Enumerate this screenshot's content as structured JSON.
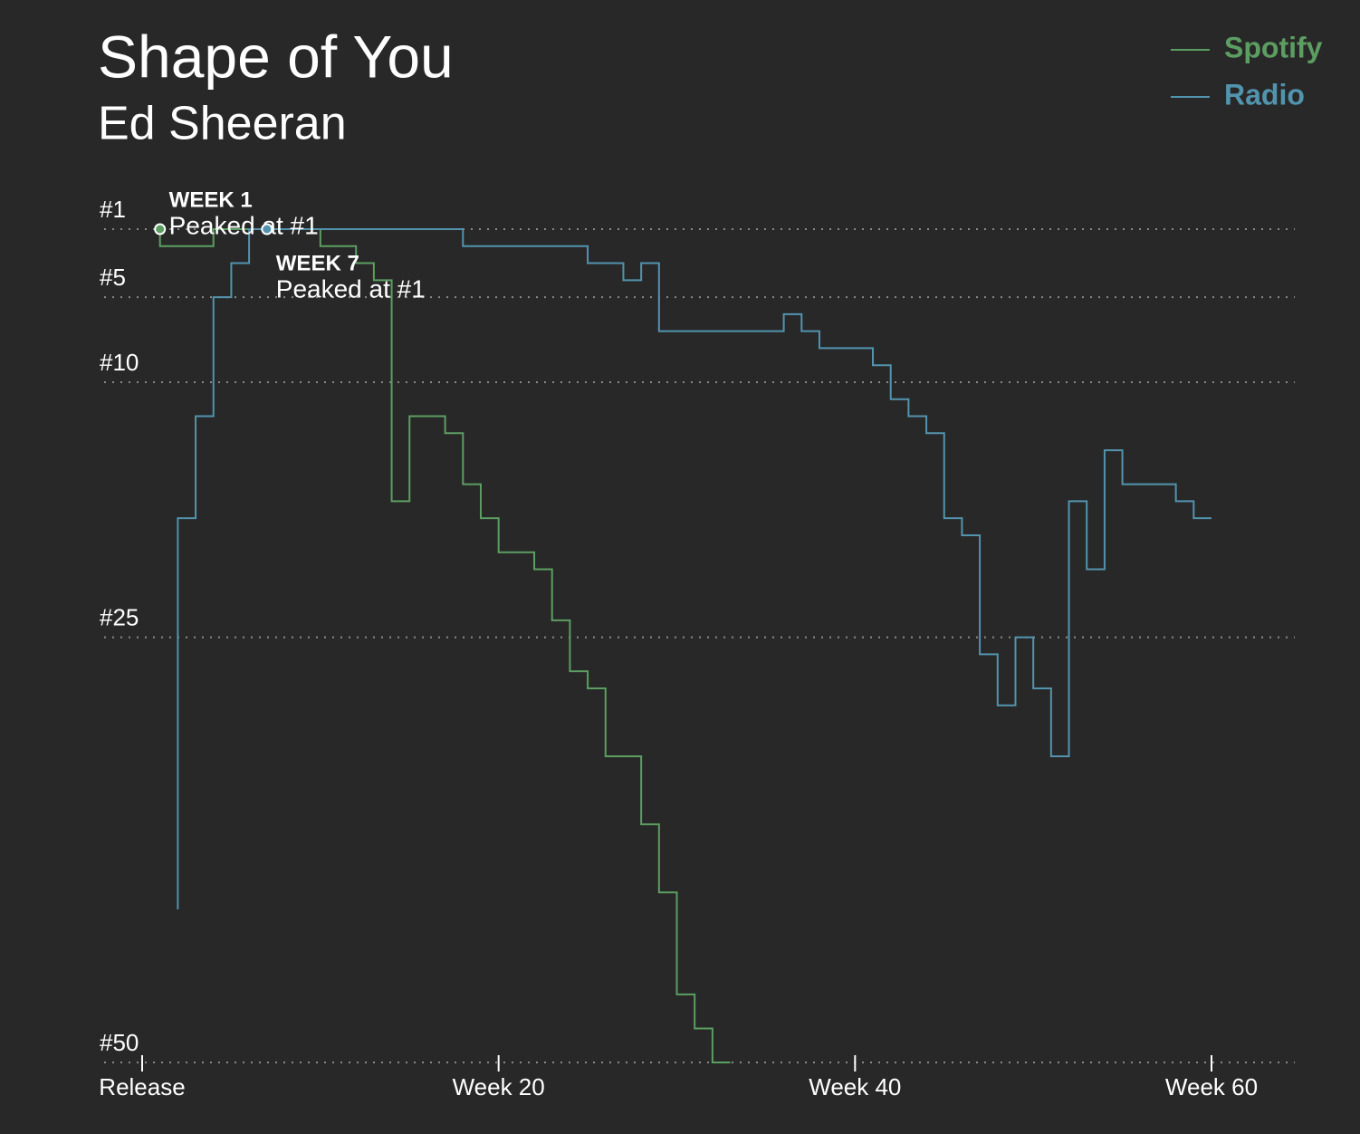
{
  "chart_data": {
    "type": "line",
    "title": "Shape of You",
    "subtitle": "Ed Sheeran",
    "step": true,
    "x": [
      1,
      2,
      3,
      4,
      5,
      6,
      7,
      8,
      9,
      10,
      11,
      12,
      13,
      14,
      15,
      16,
      17,
      18,
      19,
      20,
      21,
      22,
      23,
      24,
      25,
      26,
      27,
      28,
      29,
      30,
      31,
      32,
      33,
      34,
      35,
      36,
      37,
      38,
      39,
      40,
      41,
      42,
      43,
      44,
      45,
      46,
      47,
      48,
      49,
      50,
      51,
      52,
      53,
      54,
      55,
      56,
      57,
      58,
      59,
      60
    ],
    "series": [
      {
        "name": "Spotify",
        "color": "#5c9e62",
        "values": [
          1,
          2,
          2,
          2,
          1,
          1,
          1,
          1,
          1,
          1,
          2,
          2,
          3,
          4,
          17,
          12,
          12,
          13,
          16,
          18,
          20,
          20,
          21,
          24,
          27,
          28,
          32,
          32,
          36,
          40,
          46,
          48,
          50,
          null,
          null,
          null,
          null,
          null,
          null,
          null,
          null,
          null,
          null,
          null,
          null,
          null,
          null,
          null,
          null,
          null,
          null,
          null,
          null,
          null,
          null,
          null,
          null,
          null,
          null,
          null
        ]
      },
      {
        "name": "Radio",
        "color": "#5294ae",
        "values": [
          null,
          41,
          18,
          12,
          5,
          3,
          1,
          1,
          1,
          1,
          1,
          1,
          1,
          1,
          1,
          1,
          1,
          1,
          2,
          2,
          2,
          2,
          2,
          2,
          2,
          3,
          3,
          4,
          3,
          7,
          7,
          7,
          7,
          7,
          7,
          7,
          6,
          7,
          8,
          8,
          8,
          9,
          11,
          12,
          13,
          18,
          19,
          26,
          29,
          25,
          28,
          32,
          17,
          21,
          14,
          16,
          16,
          16,
          17,
          18
        ]
      }
    ],
    "xlim": [
      0,
      60
    ],
    "xticks": [
      {
        "value": 0,
        "label": "Release"
      },
      {
        "value": 20,
        "label": "Week 20"
      },
      {
        "value": 40,
        "label": "Week 40"
      },
      {
        "value": 60,
        "label": "Week 60"
      }
    ],
    "ylim": [
      1,
      50
    ],
    "y_inverted": true,
    "yticks": [
      {
        "value": 1,
        "label": "#1"
      },
      {
        "value": 5,
        "label": "#5"
      },
      {
        "value": 10,
        "label": "#10"
      },
      {
        "value": 25,
        "label": "#25"
      },
      {
        "value": 50,
        "label": "#50"
      }
    ],
    "grid": true,
    "legend": "top-right",
    "annotations": [
      {
        "label": "WEEK 1",
        "text": "Peaked at #1",
        "x": 1,
        "y": 1,
        "series": 0
      },
      {
        "label": "WEEK 7",
        "text": "Peaked at #1",
        "x": 7,
        "y": 1,
        "series": 1
      }
    ]
  }
}
